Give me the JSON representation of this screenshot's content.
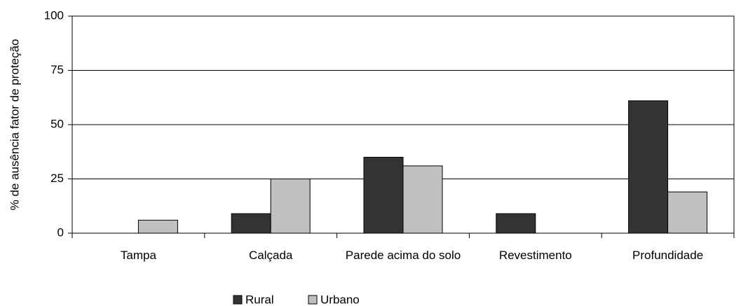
{
  "chart_data": {
    "type": "bar",
    "y_label": "% de ausência fator de proteção",
    "categories": [
      "Tampa",
      "Calçada",
      "Parede acima do solo",
      "Revestimento",
      "Profundidade"
    ],
    "series": [
      {
        "name": "Rural",
        "color": "#333333",
        "values": [
          0,
          9,
          35,
          9,
          61
        ]
      },
      {
        "name": "Urbano",
        "color": "#c0c0c0",
        "values": [
          6,
          25,
          31,
          0,
          19
        ]
      }
    ],
    "ylim": [
      0,
      100
    ],
    "yticks": [
      0,
      25,
      50,
      75,
      100
    ],
    "grid": true,
    "legend": "bottom"
  }
}
